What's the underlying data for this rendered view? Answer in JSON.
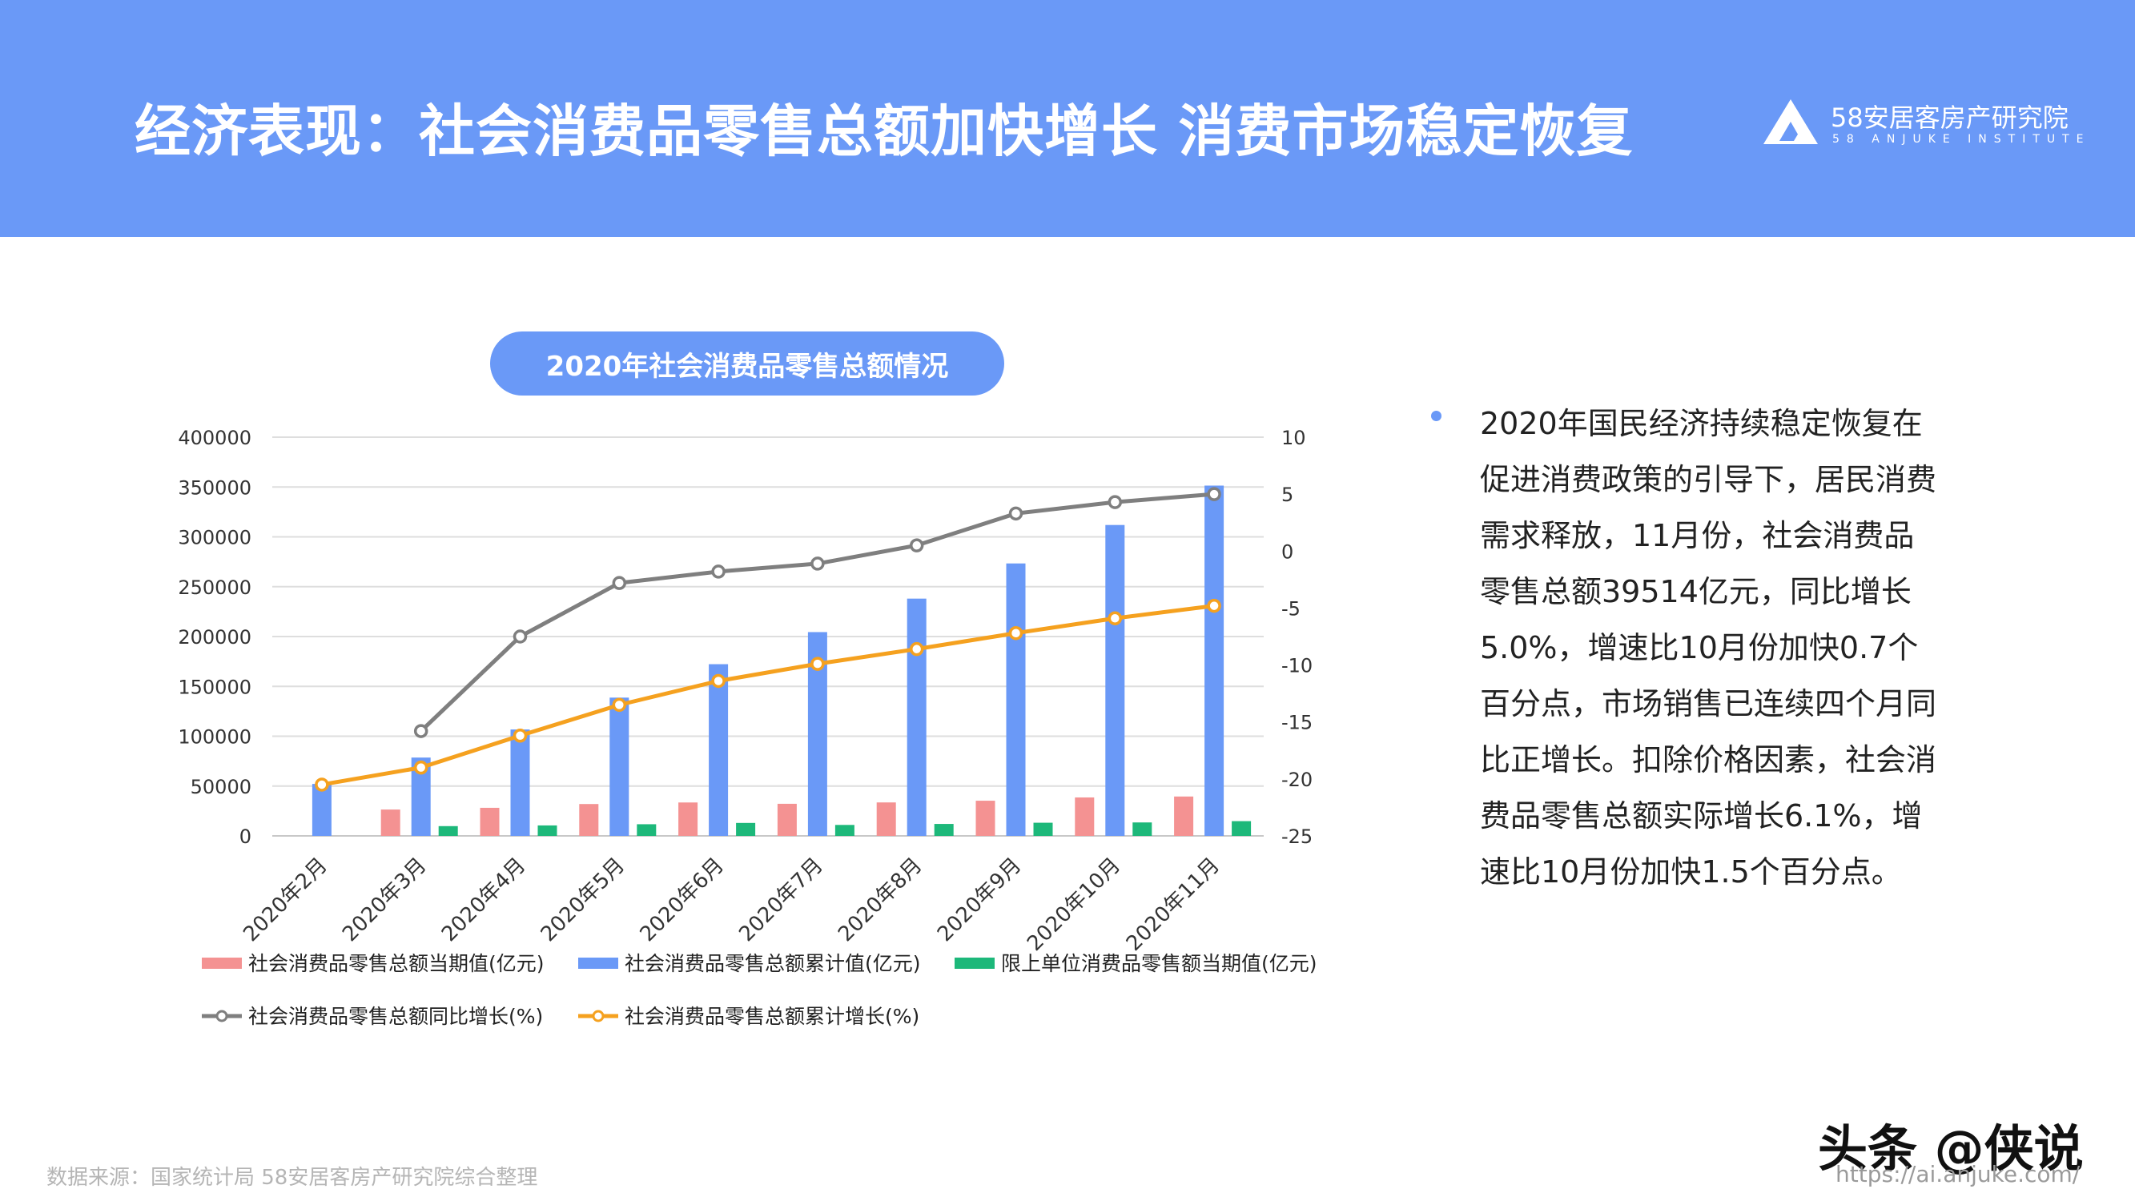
{
  "header": {
    "title": "经济表现：社会消费品零售总额加快增长 消费市场稳定恢复",
    "brand_name": "58安居客房产研究院",
    "brand_sub": "58 ANJUKE INSTITUTE",
    "brand_icon": "anjuke-logo-icon",
    "background_color": "#6a99f7"
  },
  "chart_title": "2020年社会消费品零售总额情况",
  "chart_data": {
    "type": "bar",
    "categories": [
      "2020年2月",
      "2020年3月",
      "2020年4月",
      "2020年5月",
      "2020年6月",
      "2020年7月",
      "2020年8月",
      "2020年9月",
      "2020年10月",
      "2020年11月"
    ],
    "y_left": {
      "min": 0,
      "max": 400000,
      "ticks": [
        0,
        50000,
        100000,
        150000,
        200000,
        250000,
        300000,
        350000,
        400000
      ]
    },
    "y_right": {
      "min": -25,
      "max": 10,
      "ticks": [
        -25,
        -20,
        -15,
        -10,
        -5,
        0,
        5,
        10
      ]
    },
    "grid": true,
    "legend_position": "bottom",
    "series": [
      {
        "name": "社会消费品零售总额当期值(亿元)",
        "type": "bar",
        "axis": "left",
        "color": "#f49292",
        "values": [
          null,
          26450,
          28178,
          31973,
          33526,
          32203,
          33571,
          35295,
          38576,
          39514
        ]
      },
      {
        "name": "社会消费品零售总额累计值(亿元)",
        "type": "bar",
        "axis": "left",
        "color": "#6a99f7",
        "values": [
          52130,
          78580,
          106758,
          138730,
          172256,
          204459,
          238030,
          273324,
          311900,
          351414
        ]
      },
      {
        "name": "限上单位消费品零售额当期值(亿元)",
        "type": "bar",
        "axis": "left",
        "color": "#1db87a",
        "values": [
          null,
          9800,
          10500,
          11700,
          13000,
          11000,
          12000,
          13200,
          13500,
          14800
        ]
      },
      {
        "name": "社会消费品零售总额同比增长(%)",
        "type": "line",
        "axis": "right",
        "color": "#7f7f7f",
        "values": [
          null,
          -15.8,
          -7.5,
          -2.8,
          -1.8,
          -1.1,
          0.5,
          3.3,
          4.3,
          5.0
        ]
      },
      {
        "name": "社会消费品零售总额累计增长(%)",
        "type": "line",
        "axis": "right",
        "color": "#f5a11f",
        "values": [
          -20.5,
          -19.0,
          -16.2,
          -13.5,
          -11.4,
          -9.9,
          -8.6,
          -7.2,
          -5.9,
          -4.8
        ]
      }
    ]
  },
  "side_text": "2020年国民经济持续稳定恢复在促进消费政策的引导下，居民消费需求释放，11月份，社会消费品零售总额39514亿元，同比增长5.0%，增速比10月份加快0.7个百分点，市场销售已连续四个月同比正增长。扣除价格因素，社会消费品零售总额实际增长6.1%，增速比10月份加快1.5个百分点。",
  "footer": {
    "source": "数据来源：国家统计局 58安居客房产研究院综合整理",
    "watermark": "头条 @侠说",
    "url": "https://ai.anjuke.com/"
  }
}
